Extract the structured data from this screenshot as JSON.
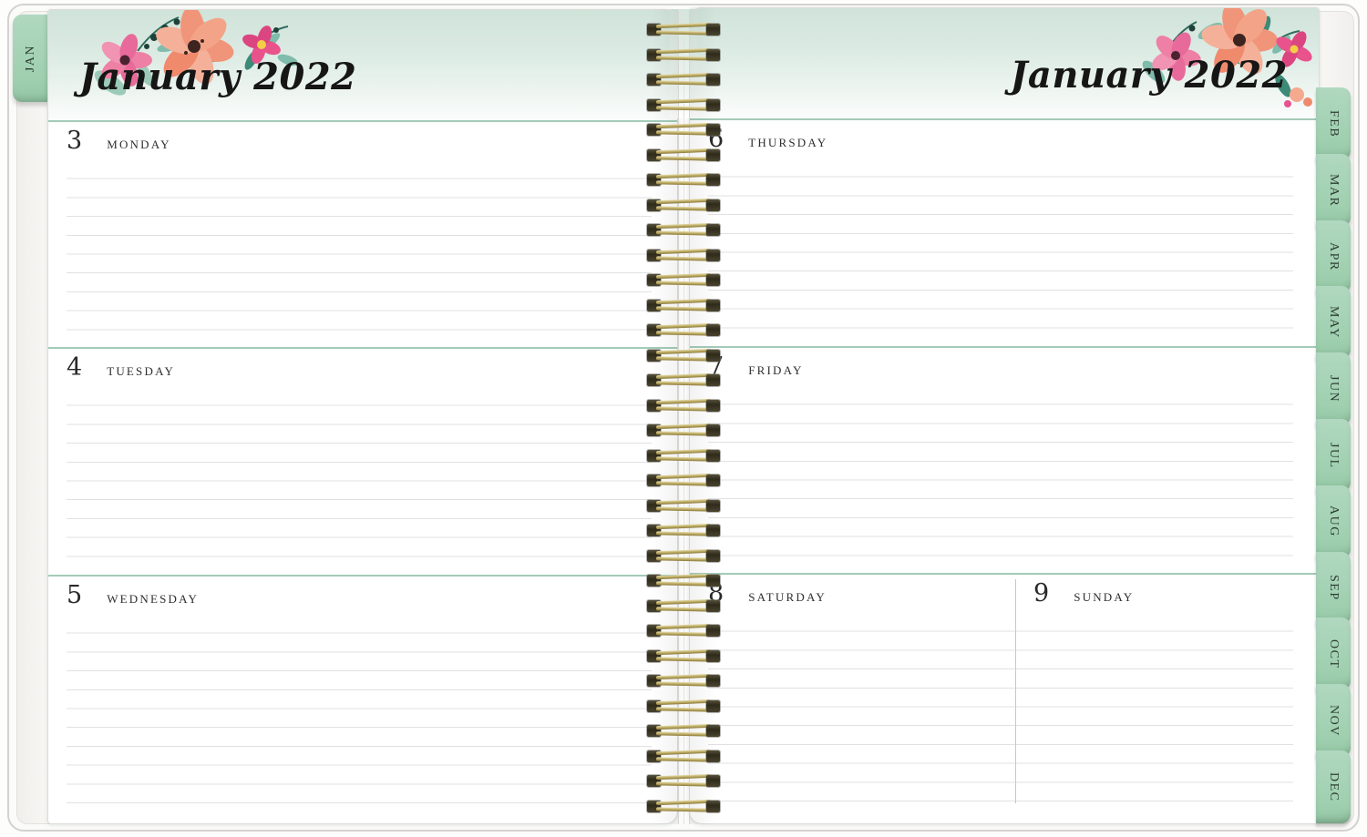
{
  "left_page": {
    "tab_label": "JAN",
    "month_title": "January 2022",
    "days": [
      {
        "date": "3",
        "name": "MONDAY"
      },
      {
        "date": "4",
        "name": "TUESDAY"
      },
      {
        "date": "5",
        "name": "WEDNESDAY"
      }
    ]
  },
  "right_page": {
    "month_title": "January 2022",
    "days": [
      {
        "date": "6",
        "name": "THURSDAY"
      },
      {
        "date": "7",
        "name": "FRIDAY"
      },
      {
        "date": "8",
        "name": "SATURDAY"
      },
      {
        "date": "9",
        "name": "SUNDAY"
      }
    ]
  },
  "month_tabs": [
    "FEB",
    "MAR",
    "APR",
    "MAY",
    "JUN",
    "JUL",
    "AUG",
    "SEP",
    "OCT",
    "NOV",
    "DEC"
  ],
  "icons": {
    "left_floral": "floral-decoration",
    "right_floral": "floral-decoration",
    "binding": "spiral-coil"
  },
  "colors": {
    "tab_green": "#a5d2b6",
    "header_mint": "#d3e5db",
    "section_rule": "#a3cbb8",
    "ruled_line": "#e1e1e1",
    "coil_gold": "#b9a75f",
    "coil_dark": "#35301f",
    "flower_coral": "#f09579",
    "flower_pink": "#ee7fa5",
    "flower_magenta": "#e8538c",
    "leaf_teal": "#5fa590",
    "text": "#222222"
  }
}
